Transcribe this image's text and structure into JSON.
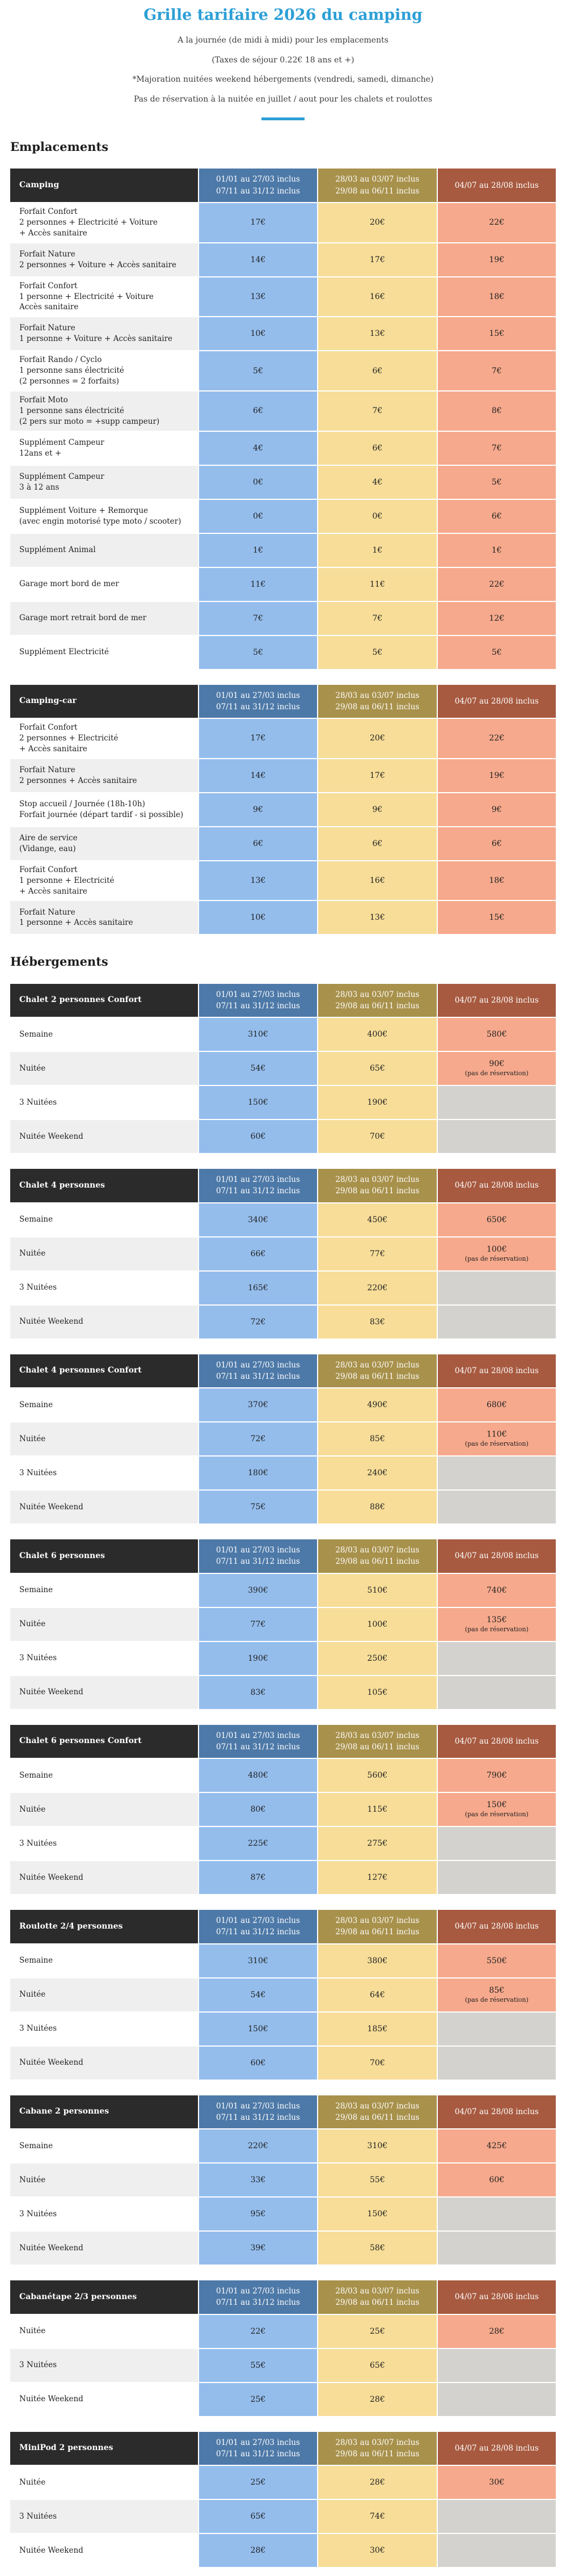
{
  "colors": {
    "accent": "#2d9fd6",
    "header_dark": "#2b2b2b",
    "header_blue": "#4d79a8",
    "header_gold": "#a8914b",
    "header_rust": "#a75a40",
    "cell_blue": "#94bdec",
    "cell_gold": "#f7dd98",
    "cell_salmon": "#f6a98c",
    "cell_empty": "#d4d2cf",
    "row_alt": "#efefef",
    "text": "#222222"
  },
  "header": {
    "title": "Grille tarifaire 2026 du camping",
    "subtitles": [
      "A la journée (de midi à midi) pour les emplacements",
      "(Taxes de séjour 0.22€ 18 ans et +)",
      "*Majoration nuitées weekend hébergements (vendredi, samedi, dimanche)",
      "Pas de réservation à la nuitée en juillet / aout pour les chalets et roulottes"
    ]
  },
  "period_headers": [
    [
      "01/01 au 27/03 inclus",
      "07/11 au 31/12 inclus"
    ],
    [
      "28/03 au 03/07 inclus",
      "29/08 au 06/11 inclus"
    ],
    [
      "04/07 au 28/08 inclus"
    ]
  ],
  "sections": [
    {
      "heading": "Emplacements",
      "tables": [
        {
          "name": "Camping",
          "rows": [
            {
              "label": [
                "Forfait Confort",
                "2 personnes + Electricité + Voiture",
                "+ Accès sanitaire"
              ],
              "prices": [
                "17€",
                "20€",
                "22€"
              ]
            },
            {
              "label": [
                "Forfait Nature",
                "2 personnes + Voiture + Accès sanitaire"
              ],
              "prices": [
                "14€",
                "17€",
                "19€"
              ]
            },
            {
              "label": [
                "Forfait Confort",
                "1 personne + Electricité + Voiture",
                "Accès sanitaire"
              ],
              "prices": [
                "13€",
                "16€",
                "18€"
              ]
            },
            {
              "label": [
                "Forfait Nature",
                "1 personne + Voiture + Accès sanitaire"
              ],
              "prices": [
                "10€",
                "13€",
                "15€"
              ]
            },
            {
              "label": [
                "Forfait Rando / Cyclo",
                "1 personne sans électricité",
                "(2 personnes = 2 forfaits)"
              ],
              "prices": [
                "5€",
                "6€",
                "7€"
              ]
            },
            {
              "label": [
                "Forfait Moto",
                "1 personne sans électricité",
                "(2 pers sur moto = +supp campeur)"
              ],
              "prices": [
                "6€",
                "7€",
                "8€"
              ]
            },
            {
              "label": [
                "Supplément Campeur",
                "12ans et +"
              ],
              "prices": [
                "4€",
                "6€",
                "7€"
              ]
            },
            {
              "label": [
                "Supplément Campeur",
                "3 à 12 ans"
              ],
              "prices": [
                "0€",
                "4€",
                "5€"
              ]
            },
            {
              "label": [
                "Supplément Voiture + Remorque",
                "(avec engin motorisé type moto / scooter)"
              ],
              "prices": [
                "0€",
                "0€",
                "6€"
              ]
            },
            {
              "label": [
                "Supplément Animal"
              ],
              "prices": [
                "1€",
                "1€",
                "1€"
              ]
            },
            {
              "label": [
                "Garage mort bord de mer"
              ],
              "prices": [
                "11€",
                "11€",
                "22€"
              ]
            },
            {
              "label": [
                "Garage mort retrait bord de mer"
              ],
              "prices": [
                "7€",
                "7€",
                "12€"
              ]
            },
            {
              "label": [
                "Supplément Electricité"
              ],
              "prices": [
                "5€",
                "5€",
                "5€"
              ]
            }
          ]
        },
        {
          "name": "Camping-car",
          "rows": [
            {
              "label": [
                "Forfait Confort",
                "2 personnes + Electricité",
                "+ Accès sanitaire"
              ],
              "prices": [
                "17€",
                "20€",
                "22€"
              ]
            },
            {
              "label": [
                "Forfait Nature",
                "2 personnes + Accès sanitaire"
              ],
              "prices": [
                "14€",
                "17€",
                "19€"
              ]
            },
            {
              "label": [
                "Stop accueil / Journée (18h-10h)",
                "Forfait journée (départ tardif - si possible)"
              ],
              "prices": [
                "9€",
                "9€",
                "9€"
              ]
            },
            {
              "label": [
                "Aire de service",
                "(Vidange, eau)"
              ],
              "prices": [
                "6€",
                "6€",
                "6€"
              ]
            },
            {
              "label": [
                "Forfait Confort",
                "1 personne + Electricité",
                "+ Accès sanitaire"
              ],
              "prices": [
                "13€",
                "16€",
                "18€"
              ]
            },
            {
              "label": [
                "Forfait Nature",
                "1 personne + Accès sanitaire"
              ],
              "prices": [
                "10€",
                "13€",
                "15€"
              ]
            }
          ]
        }
      ]
    },
    {
      "heading": "Hébergements",
      "tables": [
        {
          "name": "Chalet 2 personnes Confort",
          "rows": [
            {
              "label": [
                "Semaine"
              ],
              "prices": [
                "310€",
                "400€",
                "580€"
              ]
            },
            {
              "label": [
                "Nuitée"
              ],
              "prices": [
                "54€",
                "65€",
                {
                  "value": "90€",
                  "note": "(pas de réservation)"
                }
              ]
            },
            {
              "label": [
                "3 Nuitées"
              ],
              "prices": [
                "150€",
                "190€",
                null
              ]
            },
            {
              "label": [
                "Nuitée Weekend"
              ],
              "prices": [
                "60€",
                "70€",
                null
              ]
            }
          ]
        },
        {
          "name": "Chalet 4 personnes",
          "rows": [
            {
              "label": [
                "Semaine"
              ],
              "prices": [
                "340€",
                "450€",
                "650€"
              ]
            },
            {
              "label": [
                "Nuitée"
              ],
              "prices": [
                "66€",
                "77€",
                {
                  "value": "100€",
                  "note": "(pas de réservation)"
                }
              ]
            },
            {
              "label": [
                "3 Nuitées"
              ],
              "prices": [
                "165€",
                "220€",
                null
              ]
            },
            {
              "label": [
                "Nuitée Weekend"
              ],
              "prices": [
                "72€",
                "83€",
                null
              ]
            }
          ]
        },
        {
          "name": "Chalet 4 personnes Confort",
          "rows": [
            {
              "label": [
                "Semaine"
              ],
              "prices": [
                "370€",
                "490€",
                "680€"
              ]
            },
            {
              "label": [
                "Nuitée"
              ],
              "prices": [
                "72€",
                "85€",
                {
                  "value": "110€",
                  "note": "(pas de réservation)"
                }
              ]
            },
            {
              "label": [
                "3 Nuitées"
              ],
              "prices": [
                "180€",
                "240€",
                null
              ]
            },
            {
              "label": [
                "Nuitée Weekend"
              ],
              "prices": [
                "75€",
                "88€",
                null
              ]
            }
          ]
        },
        {
          "name": "Chalet 6 personnes",
          "rows": [
            {
              "label": [
                "Semaine"
              ],
              "prices": [
                "390€",
                "510€",
                "740€"
              ]
            },
            {
              "label": [
                "Nuitée"
              ],
              "prices": [
                "77€",
                "100€",
                {
                  "value": "135€",
                  "note": "(pas de réservation)"
                }
              ]
            },
            {
              "label": [
                "3 Nuitées"
              ],
              "prices": [
                "190€",
                "250€",
                null
              ]
            },
            {
              "label": [
                "Nuitée Weekend"
              ],
              "prices": [
                "83€",
                "105€",
                null
              ]
            }
          ]
        },
        {
          "name": "Chalet 6 personnes Confort",
          "rows": [
            {
              "label": [
                "Semaine"
              ],
              "prices": [
                "480€",
                "560€",
                "790€"
              ]
            },
            {
              "label": [
                "Nuitée"
              ],
              "prices": [
                "80€",
                "115€",
                {
                  "value": "150€",
                  "note": "(pas de réservation)"
                }
              ]
            },
            {
              "label": [
                "3 Nuitées"
              ],
              "prices": [
                "225€",
                "275€",
                null
              ]
            },
            {
              "label": [
                "Nuitée Weekend"
              ],
              "prices": [
                "87€",
                "127€",
                null
              ]
            }
          ]
        },
        {
          "name": "Roulotte 2/4 personnes",
          "rows": [
            {
              "label": [
                "Semaine"
              ],
              "prices": [
                "310€",
                "380€",
                "550€"
              ]
            },
            {
              "label": [
                "Nuitée"
              ],
              "prices": [
                "54€",
                "64€",
                {
                  "value": "85€",
                  "note": "(pas de réservation)"
                }
              ]
            },
            {
              "label": [
                "3 Nuitées"
              ],
              "prices": [
                "150€",
                "185€",
                null
              ]
            },
            {
              "label": [
                "Nuitée Weekend"
              ],
              "prices": [
                "60€",
                "70€",
                null
              ]
            }
          ]
        },
        {
          "name": "Cabane 2 personnes",
          "rows": [
            {
              "label": [
                "Semaine"
              ],
              "prices": [
                "220€",
                "310€",
                "425€"
              ]
            },
            {
              "label": [
                "Nuitée"
              ],
              "prices": [
                "33€",
                "55€",
                "60€"
              ]
            },
            {
              "label": [
                "3 Nuitées"
              ],
              "prices": [
                "95€",
                "150€",
                null
              ]
            },
            {
              "label": [
                "Nuitée Weekend"
              ],
              "prices": [
                "39€",
                "58€",
                null
              ]
            }
          ]
        },
        {
          "name": "Cabanétape 2/3 personnes",
          "rows": [
            {
              "label": [
                "Nuitée"
              ],
              "prices": [
                "22€",
                "25€",
                "28€"
              ]
            },
            {
              "label": [
                "3 Nuitées"
              ],
              "prices": [
                "55€",
                "65€",
                null
              ]
            },
            {
              "label": [
                "Nuitée Weekend"
              ],
              "prices": [
                "25€",
                "28€",
                null
              ]
            }
          ]
        },
        {
          "name": "MiniPod 2 personnes",
          "rows": [
            {
              "label": [
                "Nuitée"
              ],
              "prices": [
                "25€",
                "28€",
                "30€"
              ]
            },
            {
              "label": [
                "3 Nuitées"
              ],
              "prices": [
                "65€",
                "74€",
                null
              ]
            },
            {
              "label": [
                "Nuitée Weekend"
              ],
              "prices": [
                "28€",
                "30€",
                null
              ]
            }
          ]
        }
      ]
    }
  ]
}
